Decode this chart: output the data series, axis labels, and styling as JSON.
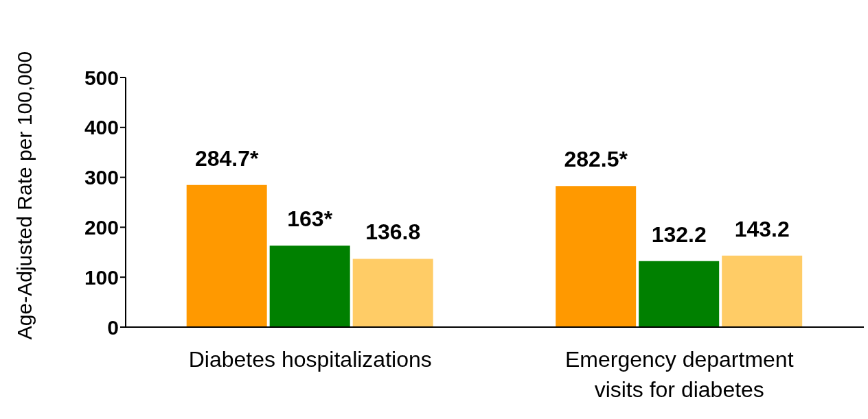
{
  "chart_data": {
    "type": "bar",
    "ylabel": "Age-Adjusted Rate per 100,000",
    "categories": [
      "Diabetes hospitalizations",
      "Emergency department visits for diabetes"
    ],
    "series": [
      {
        "color": "#ff9900",
        "values": [
          284.7,
          282.5
        ],
        "value_labels": [
          "284.7*",
          "282.5*"
        ]
      },
      {
        "color": "#008000",
        "values": [
          163,
          132.2
        ],
        "value_labels": [
          "163*",
          "132.2"
        ]
      },
      {
        "color": "#ffcc66",
        "values": [
          136.8,
          143.2
        ],
        "value_labels": [
          "136.8",
          "143.2"
        ]
      }
    ],
    "ylim": [
      0,
      500
    ],
    "yticks": [
      0,
      100,
      200,
      300,
      400,
      500
    ],
    "grid": false,
    "legend": false
  }
}
